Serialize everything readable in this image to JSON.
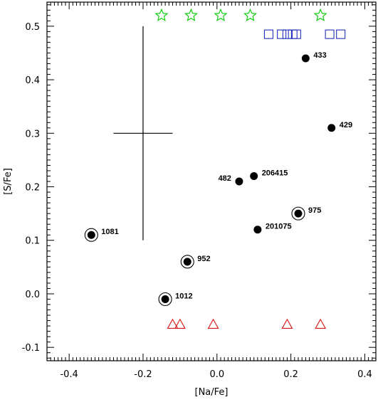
{
  "chart_data": {
    "type": "scatter",
    "xlabel": "[Na/Fe]",
    "ylabel": "[S/Fe]",
    "xlim": [
      -0.46,
      0.43
    ],
    "ylim": [
      -0.125,
      0.545
    ],
    "xticks": [
      -0.4,
      -0.2,
      0.0,
      0.2,
      0.4
    ],
    "xtick_labels": [
      "-0.4",
      "-0.2",
      "0.0",
      "0.2",
      "0.4"
    ],
    "yticks": [
      -0.1,
      0.0,
      0.1,
      0.2,
      0.3,
      0.4,
      0.5
    ],
    "ytick_labels": [
      "-0.1",
      "0.0",
      "0.1",
      "0.2",
      "0.3",
      "0.4",
      "0.5"
    ],
    "grid": false,
    "colors": {
      "stars": "#00cc00",
      "squares": "#2233bb",
      "triangles": "#dd1111",
      "points": "#000000"
    },
    "error_bar": {
      "x": -0.2,
      "y": 0.3,
      "xerr": 0.08,
      "yerr": 0.2
    },
    "points": [
      {
        "label": "433",
        "x": 0.24,
        "y": 0.44,
        "circled": false
      },
      {
        "label": "429",
        "x": 0.31,
        "y": 0.31,
        "circled": false
      },
      {
        "label": "206415",
        "x": 0.1,
        "y": 0.22,
        "circled": false
      },
      {
        "label": "482",
        "x": 0.06,
        "y": 0.21,
        "circled": false,
        "label_side": "left"
      },
      {
        "label": "975",
        "x": 0.22,
        "y": 0.15,
        "circled": true
      },
      {
        "label": "201075",
        "x": 0.11,
        "y": 0.12,
        "circled": false
      },
      {
        "label": "1081",
        "x": -0.34,
        "y": 0.11,
        "circled": true
      },
      {
        "label": "952",
        "x": -0.08,
        "y": 0.06,
        "circled": true
      },
      {
        "label": "1012",
        "x": -0.14,
        "y": -0.01,
        "circled": true
      }
    ],
    "stars": [
      {
        "x": -0.15,
        "y": 0.52
      },
      {
        "x": -0.07,
        "y": 0.52
      },
      {
        "x": 0.01,
        "y": 0.52
      },
      {
        "x": 0.09,
        "y": 0.52
      },
      {
        "x": 0.28,
        "y": 0.52
      }
    ],
    "squares": [
      {
        "x": 0.14,
        "y": 0.485
      },
      {
        "x": 0.175,
        "y": 0.485
      },
      {
        "x": 0.19,
        "y": 0.485
      },
      {
        "x": 0.205,
        "y": 0.485
      },
      {
        "x": 0.215,
        "y": 0.485
      },
      {
        "x": 0.305,
        "y": 0.485
      },
      {
        "x": 0.335,
        "y": 0.485
      }
    ],
    "triangles": [
      {
        "x": -0.12,
        "y": -0.057
      },
      {
        "x": -0.1,
        "y": -0.057
      },
      {
        "x": -0.01,
        "y": -0.057
      },
      {
        "x": 0.19,
        "y": -0.057
      },
      {
        "x": 0.28,
        "y": -0.057
      }
    ]
  }
}
